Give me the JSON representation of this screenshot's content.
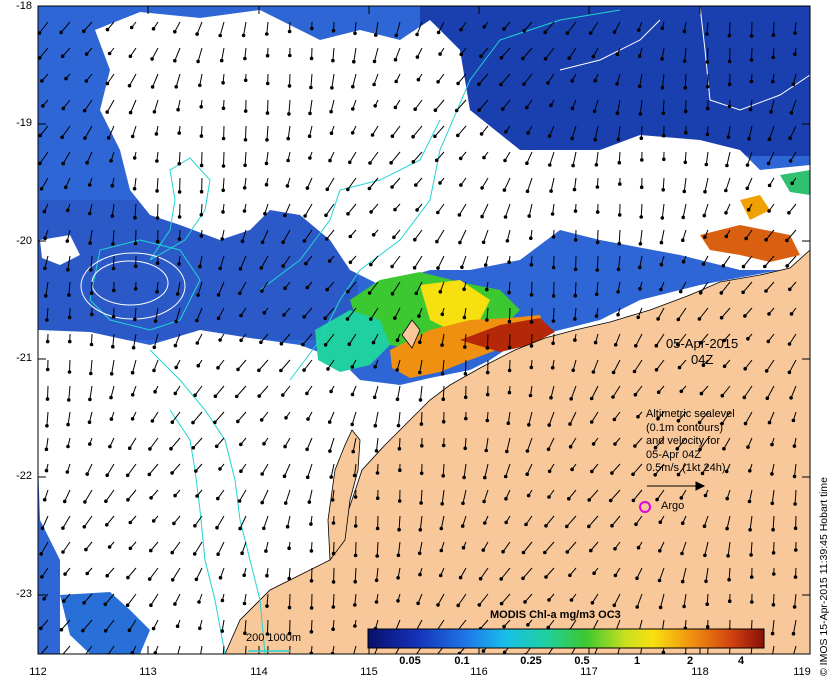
{
  "map": {
    "date_line1": "05-Apr-2015",
    "date_line2": "04Z",
    "legend_lines": [
      "Altimetric sealevel",
      "(0.1m contours)",
      "and velocity for",
      "05-Apr 04Z",
      "0.5m/s (1kt 24h)"
    ],
    "argo_label": "Argo",
    "contour_label": "200  1000m",
    "colorbar_title": "MODIS Chl-a mg/m3 OC3",
    "colorbar_ticks": [
      "0.05",
      "0.1",
      "0.25",
      "0.5",
      "1",
      "2",
      "4"
    ],
    "credit": "© IMOS 15-Apr-2015 11:39:45 Hobart time",
    "x_ticks": [
      "112",
      "113",
      "114",
      "115",
      "116",
      "117",
      "118",
      "119"
    ],
    "y_ticks": [
      "-18",
      "-19",
      "-20",
      "-21",
      "-22",
      "-23"
    ],
    "colors": {
      "land": "#F8C89A",
      "ocean_deep": "#1A3FAF",
      "ocean_blue": "#2F66D5",
      "cloud": "#FFFFFF",
      "contour": "#22D3D3",
      "argo": "#E000E0"
    }
  }
}
